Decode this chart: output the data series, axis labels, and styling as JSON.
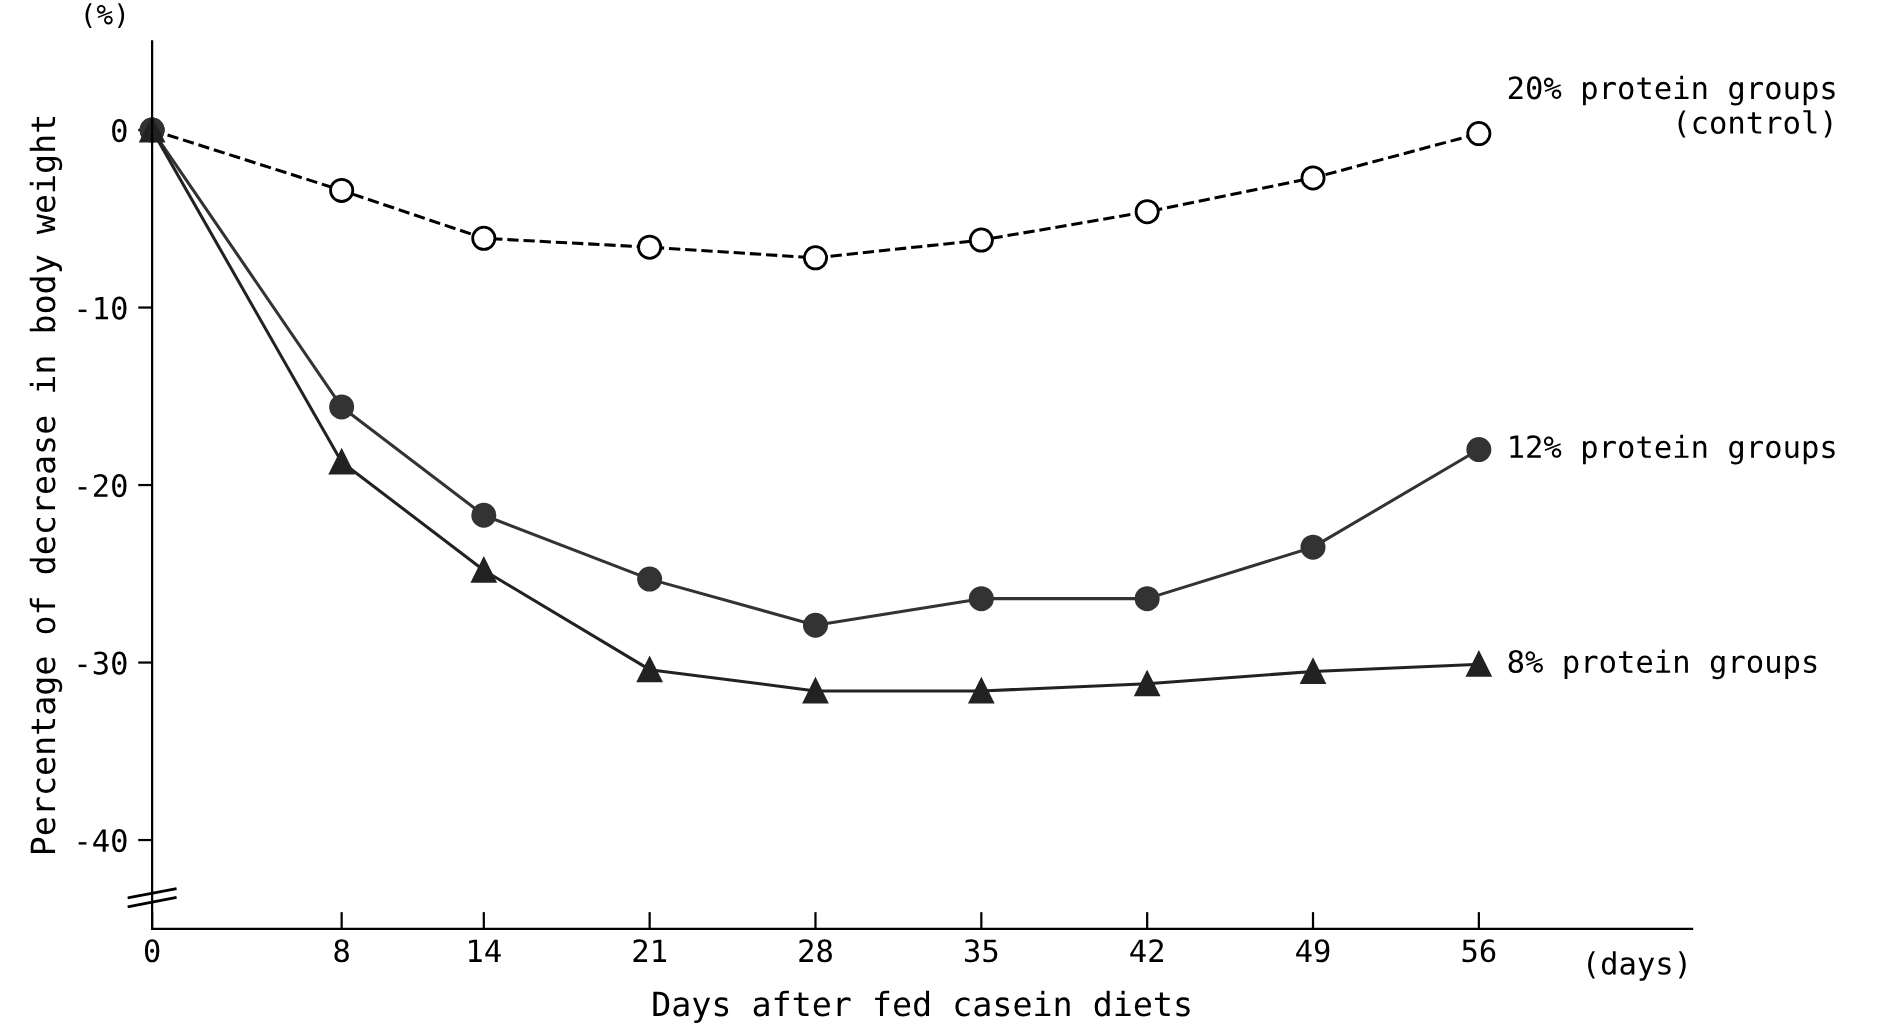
{
  "chart_data": {
    "type": "line",
    "xlabel": "Days after fed casein diets",
    "ylabel": "Percentage of decrease in body weight",
    "annotations": [
      "(%)",
      "(days)"
    ],
    "x": [
      0,
      8,
      14,
      21,
      28,
      35,
      42,
      49,
      56
    ],
    "series": [
      {
        "name": "20% protein groups\n(control)",
        "color": "#000000",
        "marker": "circle",
        "line_style": "dashed",
        "values": [
          0,
          -3.4,
          -6.1,
          -6.6,
          -7.2,
          -6.2,
          -4.6,
          -2.7,
          -0.2
        ]
      },
      {
        "name": "12% protein groups",
        "color": "#333333",
        "marker": "circle",
        "line_style": "solid",
        "values": [
          0,
          -15.6,
          -21.7,
          -25.3,
          -27.9,
          -26.4,
          -26.4,
          -23.5,
          -18.0
        ]
      },
      {
        "name": "8% protein groups",
        "color": "#222222",
        "marker": "triangle",
        "line_style": "solid",
        "values": [
          0,
          -18.7,
          -24.8,
          -30.4,
          -31.6,
          -31.6,
          -31.2,
          -30.5,
          -30.1
        ]
      }
    ],
    "xlim": [
      0,
      65
    ],
    "ylim": [
      -45,
      5
    ],
    "xticks": [
      0,
      8,
      14,
      21,
      28,
      35,
      42,
      49,
      56
    ],
    "yticks": [
      0,
      -10,
      -20,
      -30,
      -40
    ],
    "grid": false,
    "legend": false
  }
}
